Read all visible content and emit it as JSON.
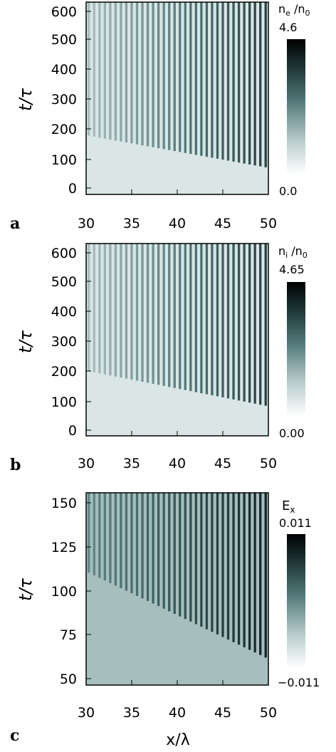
{
  "chart_data": [
    {
      "type": "heatmap",
      "panel_letter": "a",
      "xlabel": "",
      "ylabel": "t/τ",
      "x_ticks": [
        "30",
        "35",
        "40",
        "45",
        "50"
      ],
      "y_ticks": [
        "0",
        "100",
        "200",
        "300",
        "400",
        "500",
        "600"
      ],
      "xlim": [
        30,
        50
      ],
      "ylim": [
        -20,
        630
      ],
      "colorbar": {
        "label": "nₑ /n₀",
        "label_main": "n",
        "label_sub": "e",
        "label_mid": " /n",
        "label_sub2": "0",
        "max_label": "4.6",
        "min_label": "0.0",
        "max": 4.6,
        "min": 0.0
      },
      "pattern": {
        "stripes": 34,
        "onset_t": [
          180,
          70
        ],
        "background": 0.1,
        "peak": 0.8
      }
    },
    {
      "type": "heatmap",
      "panel_letter": "b",
      "xlabel": "",
      "ylabel": "t/τ",
      "x_ticks": [
        "30",
        "35",
        "40",
        "45",
        "50"
      ],
      "y_ticks": [
        "0",
        "100",
        "200",
        "300",
        "400",
        "500",
        "600"
      ],
      "xlim": [
        30,
        50
      ],
      "ylim": [
        -20,
        630
      ],
      "colorbar": {
        "label": "nᵢ /n₀",
        "label_main": "n",
        "label_sub": "i",
        "label_mid": " /n",
        "label_sub2": "0",
        "max_label": "4.65",
        "min_label": "0.00",
        "max": 4.65,
        "min": 0.0
      },
      "pattern": {
        "stripes": 34,
        "onset_t": [
          200,
          80
        ],
        "background": 0.1,
        "peak": 0.8
      }
    },
    {
      "type": "heatmap",
      "panel_letter": "c",
      "xlabel": "x/λ",
      "ylabel": "t/τ",
      "x_ticks": [
        "30",
        "35",
        "40",
        "45",
        "50"
      ],
      "y_ticks": [
        "50",
        "75",
        "100",
        "125",
        "150"
      ],
      "xlim": [
        30,
        50
      ],
      "ylim": [
        45,
        155
      ],
      "colorbar": {
        "label": "Eₓ",
        "label_main": "E",
        "label_sub": "x",
        "label_mid": "",
        "label_sub2": "",
        "max_label": "0.011",
        "min_label": "−0.011",
        "max": 0.011,
        "min": -0.011
      },
      "pattern": {
        "stripes": 34,
        "onset_t": [
          110,
          60
        ],
        "background": 0.35,
        "peak": 0.9
      }
    }
  ]
}
